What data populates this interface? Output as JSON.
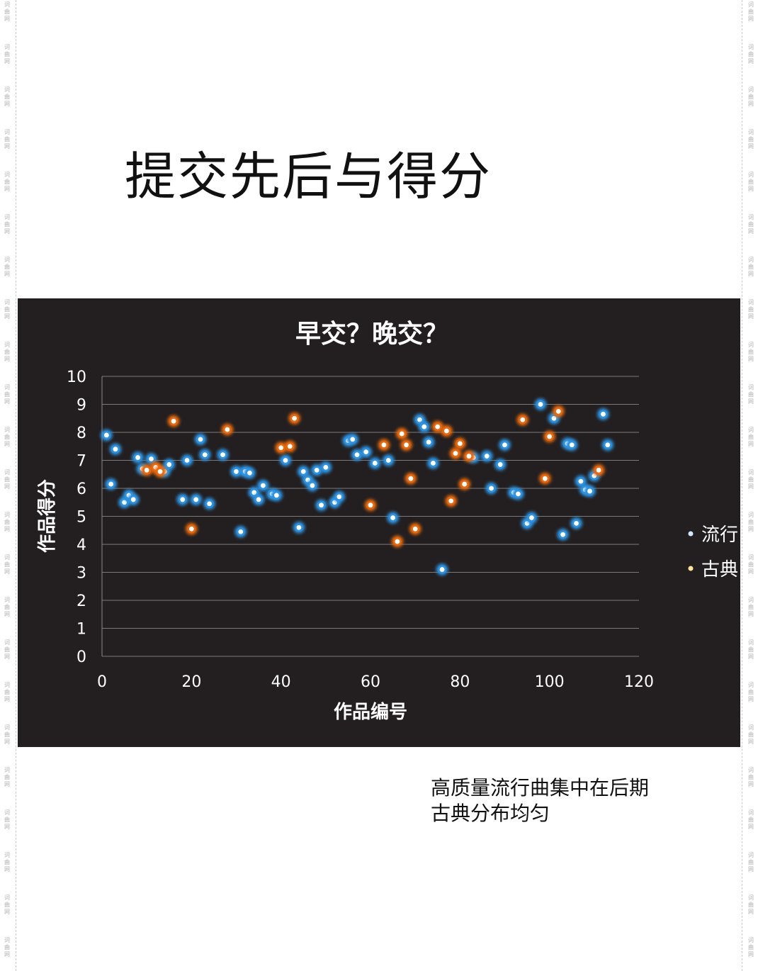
{
  "page": {
    "title": "提交先后与得分",
    "watermark_text": "词曲网",
    "caption_lines": [
      "高质量流行曲集中在后期",
      "古典分布均匀"
    ]
  },
  "colors": {
    "chart_bg": "#231f20",
    "pop": "#2f93e0",
    "classical": "#e86a10",
    "text_light": "#ffffff"
  },
  "chart_data": {
    "type": "scatter",
    "title": "早交？晚交？",
    "xlabel": "作品编号",
    "ylabel": "作品得分",
    "xlim": [
      0,
      120
    ],
    "ylim": [
      0,
      10
    ],
    "xticks": [
      0,
      20,
      40,
      60,
      80,
      100,
      120
    ],
    "yticks": [
      0,
      1,
      2,
      3,
      4,
      5,
      6,
      7,
      8,
      9,
      10
    ],
    "grid": "horizontal",
    "legend_position": "right",
    "series": [
      {
        "name": "流行",
        "points": [
          [
            1,
            7.9
          ],
          [
            2,
            6.15
          ],
          [
            3,
            7.4
          ],
          [
            5,
            5.5
          ],
          [
            6,
            5.75
          ],
          [
            7,
            5.6
          ],
          [
            8,
            7.1
          ],
          [
            9,
            6.7
          ],
          [
            11,
            7.05
          ],
          [
            14,
            6.6
          ],
          [
            15,
            6.85
          ],
          [
            18,
            5.6
          ],
          [
            19,
            7.0
          ],
          [
            21,
            5.6
          ],
          [
            22,
            7.75
          ],
          [
            23,
            7.2
          ],
          [
            24,
            5.45
          ],
          [
            27,
            7.2
          ],
          [
            30,
            6.6
          ],
          [
            31,
            4.45
          ],
          [
            32,
            6.6
          ],
          [
            33,
            6.55
          ],
          [
            34,
            5.85
          ],
          [
            35,
            5.6
          ],
          [
            36,
            6.1
          ],
          [
            38,
            5.8
          ],
          [
            39,
            5.75
          ],
          [
            41,
            7.0
          ],
          [
            44,
            4.6
          ],
          [
            45,
            6.6
          ],
          [
            46,
            6.3
          ],
          [
            47,
            6.1
          ],
          [
            48,
            6.65
          ],
          [
            49,
            5.4
          ],
          [
            50,
            6.75
          ],
          [
            52,
            5.5
          ],
          [
            53,
            5.7
          ],
          [
            55,
            7.7
          ],
          [
            56,
            7.75
          ],
          [
            57,
            7.2
          ],
          [
            59,
            7.3
          ],
          [
            61,
            6.9
          ],
          [
            64,
            7.0
          ],
          [
            65,
            4.95
          ],
          [
            71,
            8.45
          ],
          [
            72,
            8.2
          ],
          [
            73,
            7.65
          ],
          [
            74,
            6.9
          ],
          [
            76,
            3.1
          ],
          [
            83,
            7.1
          ],
          [
            86,
            7.15
          ],
          [
            87,
            6.0
          ],
          [
            89,
            6.85
          ],
          [
            90,
            7.55
          ],
          [
            92,
            5.85
          ],
          [
            93,
            5.8
          ],
          [
            95,
            4.75
          ],
          [
            96,
            4.95
          ],
          [
            98,
            9.0
          ],
          [
            101,
            8.5
          ],
          [
            103,
            4.35
          ],
          [
            104,
            7.6
          ],
          [
            105,
            7.55
          ],
          [
            106,
            4.75
          ],
          [
            107,
            6.25
          ],
          [
            108,
            5.95
          ],
          [
            109,
            5.9
          ],
          [
            110,
            6.45
          ],
          [
            112,
            8.65
          ],
          [
            113,
            7.55
          ]
        ]
      },
      {
        "name": "古典",
        "points": [
          [
            10,
            6.65
          ],
          [
            12,
            6.75
          ],
          [
            13,
            6.6
          ],
          [
            16,
            8.4
          ],
          [
            20,
            4.55
          ],
          [
            28,
            8.1
          ],
          [
            40,
            7.45
          ],
          [
            42,
            7.5
          ],
          [
            43,
            8.5
          ],
          [
            60,
            5.4
          ],
          [
            63,
            7.55
          ],
          [
            66,
            4.1
          ],
          [
            67,
            7.95
          ],
          [
            68,
            7.55
          ],
          [
            69,
            6.35
          ],
          [
            70,
            4.55
          ],
          [
            75,
            8.2
          ],
          [
            77,
            8.05
          ],
          [
            78,
            5.55
          ],
          [
            79,
            7.25
          ],
          [
            80,
            7.6
          ],
          [
            81,
            6.15
          ],
          [
            82,
            7.15
          ],
          [
            94,
            8.45
          ],
          [
            99,
            6.35
          ],
          [
            100,
            7.85
          ],
          [
            102,
            8.75
          ],
          [
            111,
            6.65
          ]
        ]
      }
    ]
  }
}
